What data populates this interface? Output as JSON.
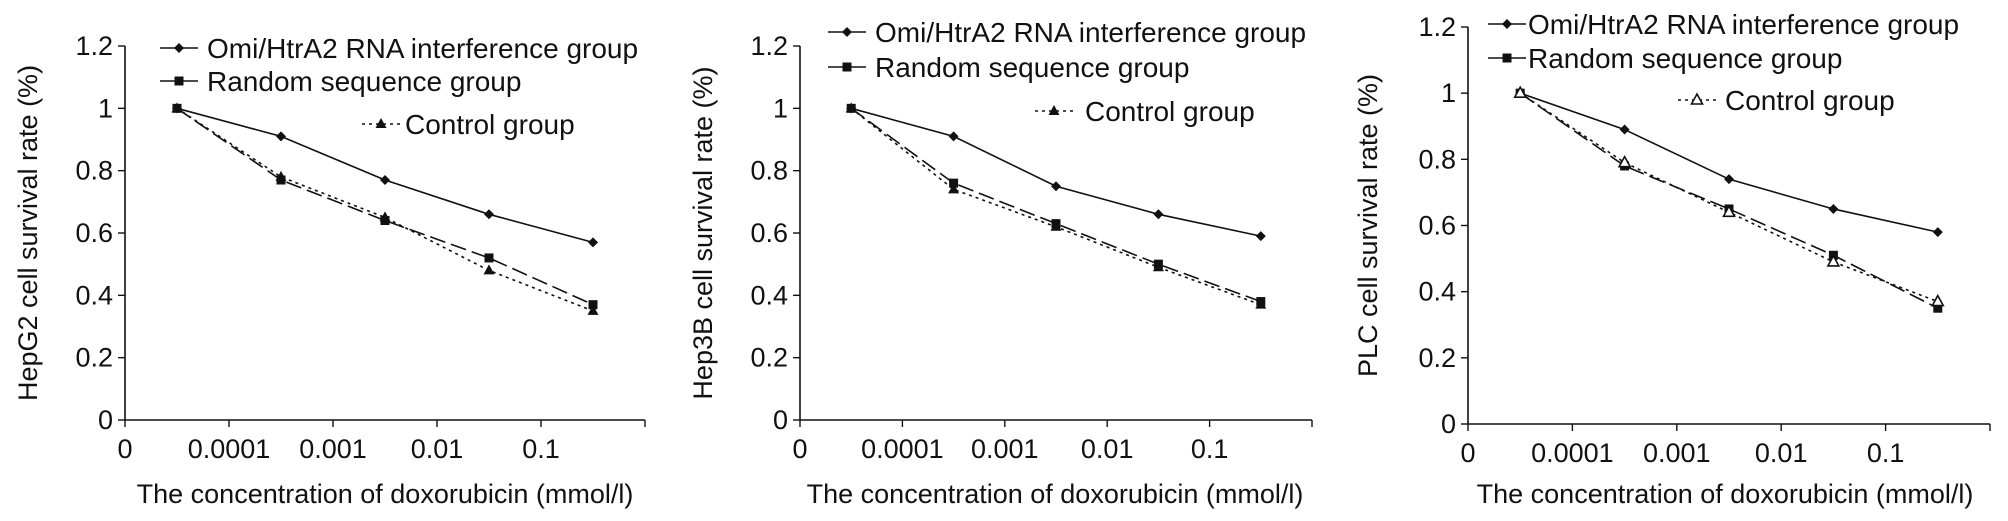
{
  "chart_data": [
    {
      "type": "line",
      "title": "",
      "xlabel": "The concentration of doxorubicin (mmol/l)",
      "ylabel": "HepG2 cell survival rate (%)",
      "x_tick_labels": [
        "0",
        "0.0001",
        "0.001",
        "0.01",
        "0.1"
      ],
      "y_ticks": [
        0,
        0.2,
        0.4,
        0.6,
        0.8,
        1,
        1.2
      ],
      "y_tick_labels": [
        "0",
        "0.2",
        "0.4",
        "0.6",
        "0.8",
        "1",
        "1.2"
      ],
      "ylim": [
        0,
        1.2
      ],
      "x": [
        "0.00005",
        "0.0005",
        "0.005",
        "0.05",
        "0.5"
      ],
      "grid": false,
      "legend_position": "top-right",
      "series": [
        {
          "name": "Omi/HtrA2 RNA interference group",
          "style": "solid",
          "marker": "diamond",
          "values": [
            1.0,
            0.91,
            0.77,
            0.66,
            0.57
          ]
        },
        {
          "name": "Random sequence group",
          "style": "dashed",
          "marker": "square",
          "values": [
            1.0,
            0.77,
            0.64,
            0.52,
            0.37
          ]
        },
        {
          "name": "Control group",
          "style": "dotted",
          "marker": "triangle",
          "values": [
            1.0,
            0.78,
            0.65,
            0.48,
            0.35
          ]
        }
      ]
    },
    {
      "type": "line",
      "title": "",
      "xlabel": "The concentration of doxorubicin (mmol/l)",
      "ylabel": "Hep3B cell survival rate (%)",
      "x_tick_labels": [
        "0",
        "0.0001",
        "0.001",
        "0.01",
        "0.1"
      ],
      "y_ticks": [
        0,
        0.2,
        0.4,
        0.6,
        0.8,
        1,
        1.2
      ],
      "y_tick_labels": [
        "0",
        "0.2",
        "0.4",
        "0.6",
        "0.8",
        "1",
        "1.2"
      ],
      "ylim": [
        0,
        1.2
      ],
      "x": [
        "0.00005",
        "0.0005",
        "0.005",
        "0.05",
        "0.5"
      ],
      "grid": false,
      "legend_position": "top-right",
      "series": [
        {
          "name": "Omi/HtrA2 RNA interference group",
          "style": "solid",
          "marker": "diamond",
          "values": [
            1.0,
            0.91,
            0.75,
            0.66,
            0.59
          ]
        },
        {
          "name": "Random sequence group",
          "style": "dashed",
          "marker": "square",
          "values": [
            1.0,
            0.76,
            0.63,
            0.5,
            0.38
          ]
        },
        {
          "name": "Control group",
          "style": "dotted",
          "marker": "triangle",
          "values": [
            1.0,
            0.74,
            0.62,
            0.49,
            0.37
          ]
        }
      ]
    },
    {
      "type": "line",
      "title": "",
      "xlabel": "The concentration of doxorubicin (mmol/l)",
      "ylabel": "PLC cell survival rate (%)",
      "x_tick_labels": [
        "0",
        "0.0001",
        "0.001",
        "0.01",
        "0.1"
      ],
      "y_ticks": [
        0,
        0.2,
        0.4,
        0.6,
        0.8,
        1,
        1.2
      ],
      "y_tick_labels": [
        "0",
        "0.2",
        "0.4",
        "0.6",
        "0.8",
        "1",
        "1.2"
      ],
      "ylim": [
        0,
        1.2
      ],
      "x": [
        "0.00005",
        "0.0005",
        "0.005",
        "0.05",
        "0.5"
      ],
      "grid": false,
      "legend_position": "top-right",
      "series": [
        {
          "name": "Omi/HtrA2 RNA interference group",
          "style": "solid",
          "marker": "diamond",
          "values": [
            1.0,
            0.89,
            0.74,
            0.65,
            0.58
          ]
        },
        {
          "name": "Random sequence group",
          "style": "dashed",
          "marker": "square",
          "values": [
            1.0,
            0.78,
            0.65,
            0.51,
            0.35
          ]
        },
        {
          "name": "Control group",
          "style": "dotted",
          "marker": "triangle-open",
          "values": [
            1.0,
            0.79,
            0.64,
            0.49,
            0.37
          ]
        }
      ]
    }
  ]
}
